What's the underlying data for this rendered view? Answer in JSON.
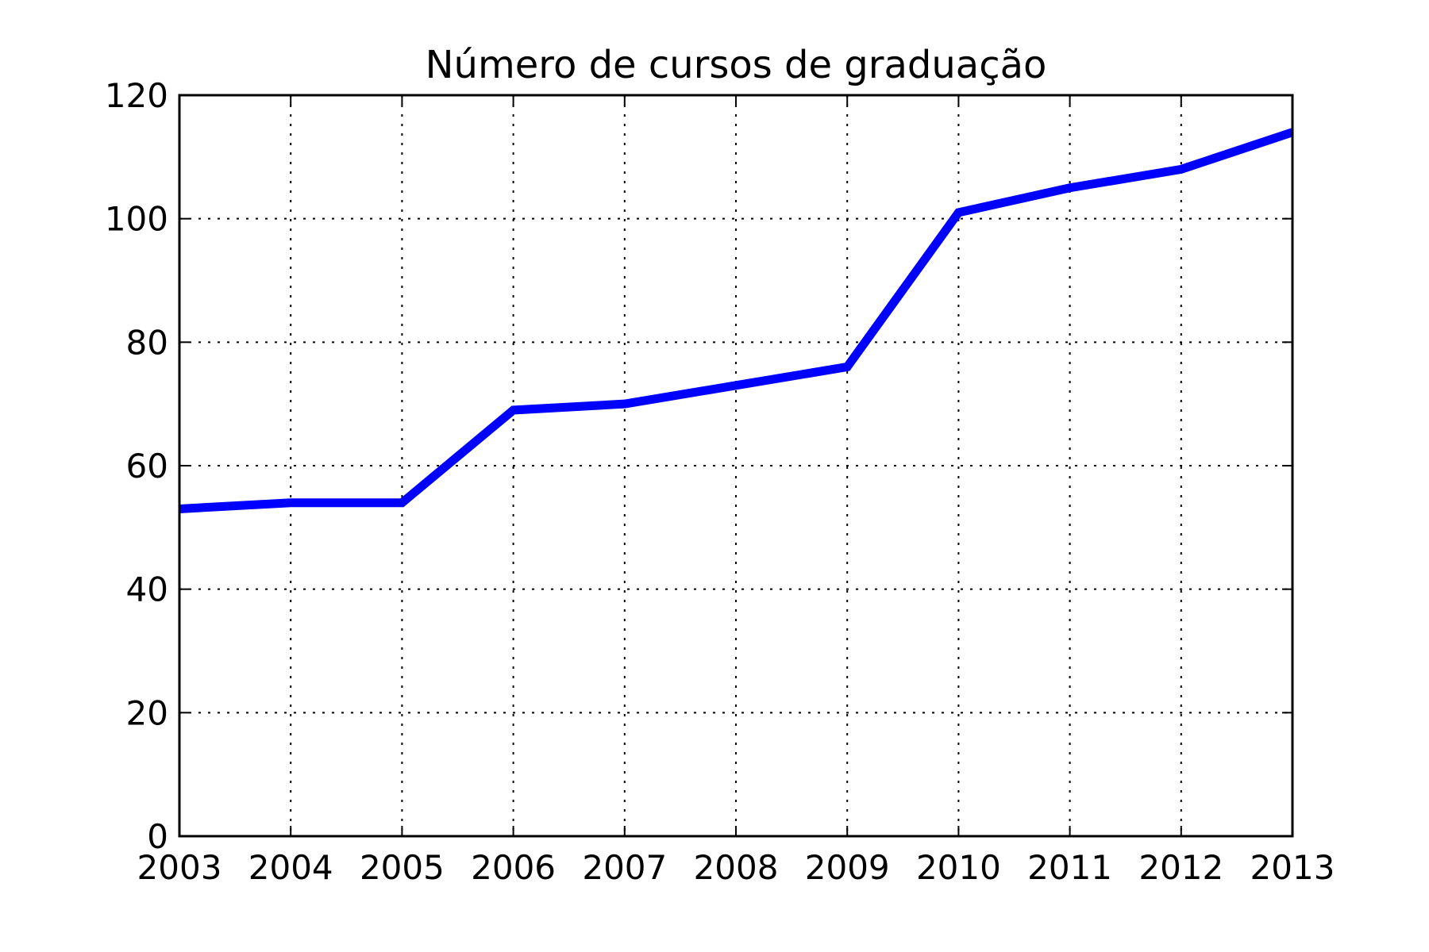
{
  "chart_data": {
    "type": "line",
    "title": "Número de cursos de graduação",
    "xlabel": "",
    "ylabel": "",
    "x": [
      2003,
      2004,
      2005,
      2006,
      2007,
      2008,
      2009,
      2010,
      2011,
      2012,
      2013
    ],
    "series": [
      {
        "values": [
          53,
          54,
          54,
          69,
          70,
          73,
          76,
          101,
          105,
          108,
          114
        ]
      }
    ],
    "xlim": [
      2003,
      2013
    ],
    "ylim": [
      0,
      120
    ],
    "xticks": [
      2003,
      2004,
      2005,
      2006,
      2007,
      2008,
      2009,
      2010,
      2011,
      2012,
      2013
    ],
    "yticks": [
      0,
      20,
      40,
      60,
      80,
      100,
      120
    ],
    "grid": true,
    "grid_style": "dotted",
    "legend": "none",
    "colors": {
      "line": "#0000ff",
      "axes": "#000000",
      "grid": "#000000",
      "background": "#ffffff"
    }
  }
}
